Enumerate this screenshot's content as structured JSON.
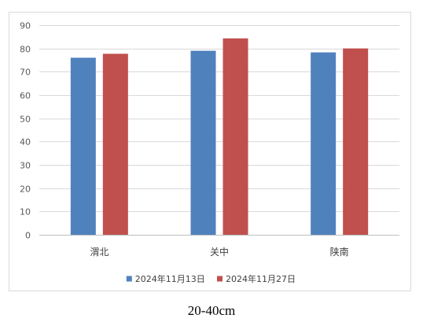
{
  "chart_data": {
    "type": "bar",
    "title": "",
    "xlabel": "",
    "ylabel": "",
    "categories": [
      "渭北",
      "关中",
      "陕南"
    ],
    "series": [
      {
        "name": "2024年11月13日",
        "values": [
          76,
          79,
          78.3
        ],
        "color": "#4f81bd"
      },
      {
        "name": "2024年11月27日",
        "values": [
          77.7,
          84.3,
          80
        ],
        "color": "#c0504d"
      }
    ],
    "ylim": [
      0,
      90
    ],
    "yticks": [
      0,
      10,
      20,
      30,
      40,
      50,
      60,
      70,
      80,
      90
    ],
    "grid": true,
    "legend_position": "bottom"
  },
  "caption": "20-40cm"
}
